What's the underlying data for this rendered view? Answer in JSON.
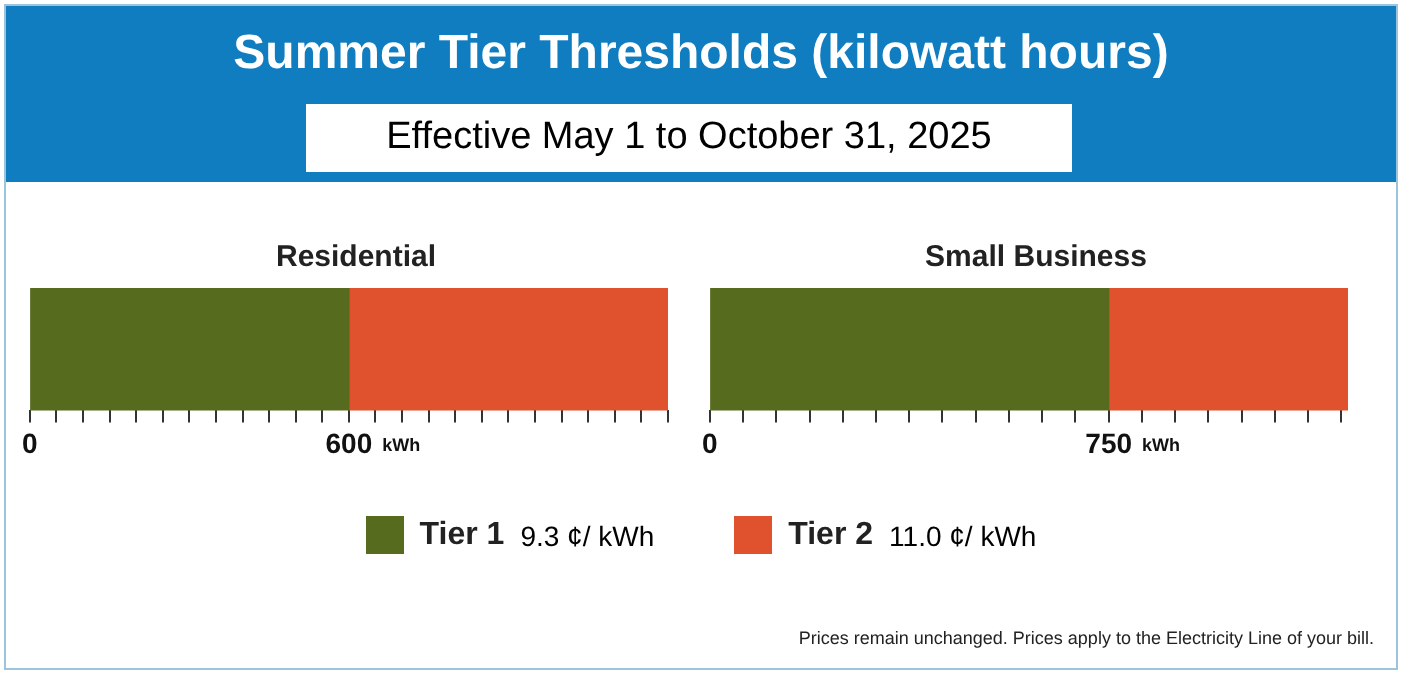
{
  "chart_data": [
    {
      "type": "other",
      "title": "Summer Tier Thresholds (kilowatt hours)",
      "subtitle": "Effective May 1 to October 31, 2025",
      "annotations": [
        "Prices remain unchanged. Prices apply to the Electricity Line of your bill."
      ]
    },
    {
      "type": "bar",
      "title": "Residential",
      "orientation": "horizontal",
      "stacked": true,
      "categories": [
        null
      ],
      "series": [
        {
          "name": "Tier 1",
          "color": "#566b1e",
          "values": [
            600
          ]
        },
        {
          "name": "Tier 2",
          "color": "#e0512d",
          "values": [
            600
          ]
        }
      ],
      "xlim": [
        0,
        1200
      ],
      "xticks": [
        {
          "value": 0,
          "label": "0"
        },
        {
          "value": 50,
          "label": null
        },
        {
          "value": 100,
          "label": null
        },
        {
          "value": 150,
          "label": null
        },
        {
          "value": 200,
          "label": null
        },
        {
          "value": 250,
          "label": null
        },
        {
          "value": 300,
          "label": null
        },
        {
          "value": 350,
          "label": null
        },
        {
          "value": 400,
          "label": null
        },
        {
          "value": 450,
          "label": null
        },
        {
          "value": 500,
          "label": null
        },
        {
          "value": 550,
          "label": null
        },
        600,
        {
          "value": 650,
          "label": null
        },
        {
          "value": 700,
          "label": null
        },
        {
          "value": 750,
          "label": null
        },
        {
          "value": 800,
          "label": null
        },
        {
          "value": 850,
          "label": null
        },
        {
          "value": 900,
          "label": null
        },
        {
          "value": 950,
          "label": null
        },
        {
          "value": 1000,
          "label": null
        },
        {
          "value": 1050,
          "label": null
        },
        {
          "value": 1100,
          "label": null
        },
        {
          "value": 1150,
          "label": null
        },
        {
          "value": 1200,
          "label": null
        }
      ],
      "xlabel": "kWh",
      "legend": "bottom",
      "annotations": [
        "9.3 ¢/ kWh",
        "11.0 ¢/ kWh"
      ]
    },
    {
      "type": "bar",
      "title": "Small Business",
      "orientation": "horizontal",
      "stacked": true,
      "categories": [
        null
      ],
      "series": [
        {
          "color": "#566b1e",
          "values": [
            750
          ]
        },
        {
          "color": "#e0512d",
          "values": [
            450
          ]
        }
      ],
      "xlim": [
        0,
        1200
      ],
      "xlabel": "kWh",
      "xticks": [
        {
          "value": 0,
          "label": "0"
        },
        {
          "value": 62.5,
          "label": null
        },
        {
          "value": 125,
          "label": null
        },
        {
          "value": 187.5,
          "label": null
        },
        {
          "value": 250,
          "label": null
        },
        {
          "value": 312.5,
          "label": null
        },
        {
          "value": 375,
          "label": null
        },
        {
          "value": 437.5,
          "label": null
        },
        {
          "value": 500,
          "label": null
        },
        {
          "value": 562.5,
          "label": null
        },
        {
          "value": 625,
          "label": null
        },
        {
          "value": 687.5,
          "label": null
        },
        750,
        {
          "value": 812.5,
          "label": null
        },
        {
          "value": 875,
          "label": null
        },
        {
          "value": 937.5,
          "label": null
        },
        {
          "value": 1000,
          "label": null
        },
        {
          "value": 1062.5,
          "label": null
        },
        {
          "value": 1125,
          "label": null
        },
        {
          "value": 1187.5,
          "label": null
        }
      ]
    }
  ]
}
